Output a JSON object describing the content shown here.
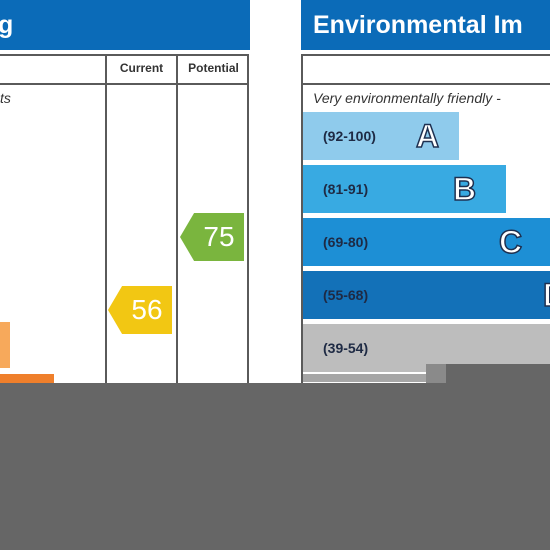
{
  "left_panel": {
    "title_fragment": "g",
    "columns": {
      "current": "Current",
      "potential": "Potential"
    },
    "subtext_fragment": "ts",
    "current_rating": "56",
    "potential_rating": "75",
    "colors": {
      "header": "#0b6bb8",
      "current_badge": "#f2c713",
      "potential_badge": "#7ab53e"
    }
  },
  "right_panel": {
    "title": "Environmental Im",
    "subtext": "Very environmentally friendly -",
    "bands": [
      {
        "range": "(92-100)",
        "letter": "A",
        "color": "#8fcbec"
      },
      {
        "range": "(81-91)",
        "letter": "B",
        "color": "#38aae2"
      },
      {
        "range": "(69-80)",
        "letter": "C",
        "color": "#1d8fd5"
      },
      {
        "range": "(55-68)",
        "letter": "D",
        "color": "#1371b8"
      },
      {
        "range": "(39-54)",
        "letter": "",
        "color": "#bdbdbd"
      }
    ]
  }
}
